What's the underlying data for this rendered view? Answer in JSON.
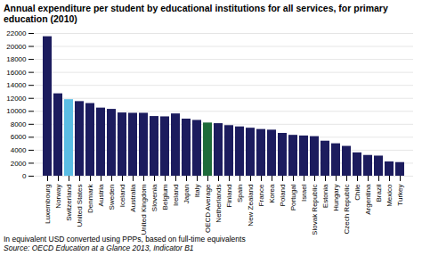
{
  "chart_data": {
    "type": "bar",
    "title": "Annual expenditure per student by educational institutions for all services, for primary education (2010)",
    "annotations": [
      "In equivalent USD converted using PPPs, based on full-time equivalents",
      "Source: OECD Education at a Glance 2013, Indicator B1"
    ],
    "categories": [
      "Luxembourg",
      "Norway",
      "Switzerland",
      "United States",
      "Denmark",
      "Austria",
      "Sweden",
      "Iceland",
      "Australia",
      "United Kingdom",
      "Slovenia",
      "Belgium",
      "Ireland",
      "Japan",
      "Italy",
      "OECD Average",
      "Netherlands",
      "Finland",
      "Spain",
      "New Zealand",
      "France",
      "Korea",
      "Poland",
      "Portugal",
      "Israel",
      "Slovak Republic",
      "Estonia",
      "Hungary",
      "Czech Republic",
      "Chile",
      "Argentina",
      "Brazil",
      "Mexico",
      "Turkey"
    ],
    "values": [
      21500,
      12700,
      11800,
      11500,
      11200,
      10500,
      10300,
      9750,
      9700,
      9700,
      9200,
      9150,
      9600,
      8800,
      8600,
      8200,
      8100,
      7800,
      7600,
      7400,
      7200,
      7100,
      6600,
      6300,
      6200,
      6100,
      5400,
      5000,
      4600,
      3600,
      3200,
      3100,
      2200,
      2100
    ],
    "colors": [
      "#1c1c5e",
      "#1c1c5e",
      "#5bbde4",
      "#1c1c5e",
      "#1c1c5e",
      "#1c1c5e",
      "#1c1c5e",
      "#1c1c5e",
      "#1c1c5e",
      "#1c1c5e",
      "#1c1c5e",
      "#1c1c5e",
      "#1c1c5e",
      "#1c1c5e",
      "#1c1c5e",
      "#1e6b3a",
      "#1c1c5e",
      "#1c1c5e",
      "#1c1c5e",
      "#1c1c5e",
      "#1c1c5e",
      "#1c1c5e",
      "#1c1c5e",
      "#1c1c5e",
      "#1c1c5e",
      "#1c1c5e",
      "#1c1c5e",
      "#1c1c5e",
      "#1c1c5e",
      "#1c1c5e",
      "#1c1c5e",
      "#1c1c5e",
      "#1c1c5e",
      "#1c1c5e"
    ],
    "ylim": [
      0,
      22000
    ],
    "yticks": [
      0,
      2000,
      4000,
      6000,
      8000,
      10000,
      12000,
      14000,
      16000,
      18000,
      20000,
      22000
    ],
    "grid": true
  }
}
